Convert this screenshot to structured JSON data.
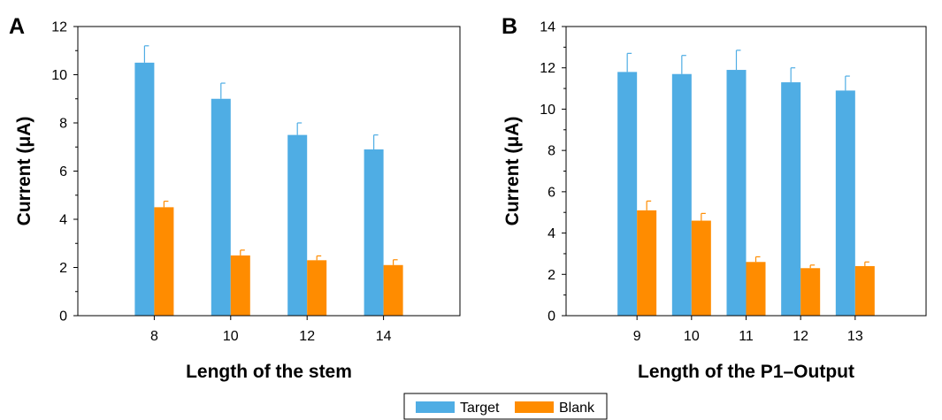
{
  "colors": {
    "target": "#4FADE4",
    "blank": "#FF8C00",
    "axis": "#000000"
  },
  "legend": {
    "items": [
      {
        "key": "target",
        "label": "Target"
      },
      {
        "key": "blank",
        "label": "Blank"
      }
    ]
  },
  "chart_data": [
    {
      "panel_label": "A",
      "type": "bar",
      "xlabel": "Length of the stem",
      "ylabel": "Current (μA)",
      "ylim": [
        0,
        12
      ],
      "yticks": [
        0,
        2,
        4,
        6,
        8,
        10,
        12
      ],
      "categories": [
        "8",
        "10",
        "12",
        "14"
      ],
      "series": [
        {
          "name": "Target",
          "key": "target",
          "values": [
            10.5,
            9.0,
            7.5,
            6.9
          ],
          "errors": [
            0.7,
            0.65,
            0.5,
            0.6
          ]
        },
        {
          "name": "Blank",
          "key": "blank",
          "values": [
            4.5,
            2.5,
            2.3,
            2.1
          ],
          "errors": [
            0.25,
            0.22,
            0.18,
            0.22
          ]
        }
      ],
      "grid": false
    },
    {
      "panel_label": "B",
      "type": "bar",
      "xlabel": "Length of the P1–Output",
      "ylabel": "Current (μA)",
      "ylim": [
        0,
        14
      ],
      "yticks": [
        0,
        2,
        4,
        6,
        8,
        10,
        12,
        14
      ],
      "categories": [
        "9",
        "10",
        "11",
        "12",
        "13"
      ],
      "series": [
        {
          "name": "Target",
          "key": "target",
          "values": [
            11.8,
            11.7,
            11.9,
            11.3,
            10.9
          ],
          "errors": [
            0.9,
            0.9,
            0.95,
            0.7,
            0.7
          ]
        },
        {
          "name": "Blank",
          "key": "blank",
          "values": [
            5.1,
            4.6,
            2.6,
            2.3,
            2.4
          ],
          "errors": [
            0.45,
            0.35,
            0.25,
            0.15,
            0.2
          ]
        }
      ],
      "grid": false
    }
  ]
}
